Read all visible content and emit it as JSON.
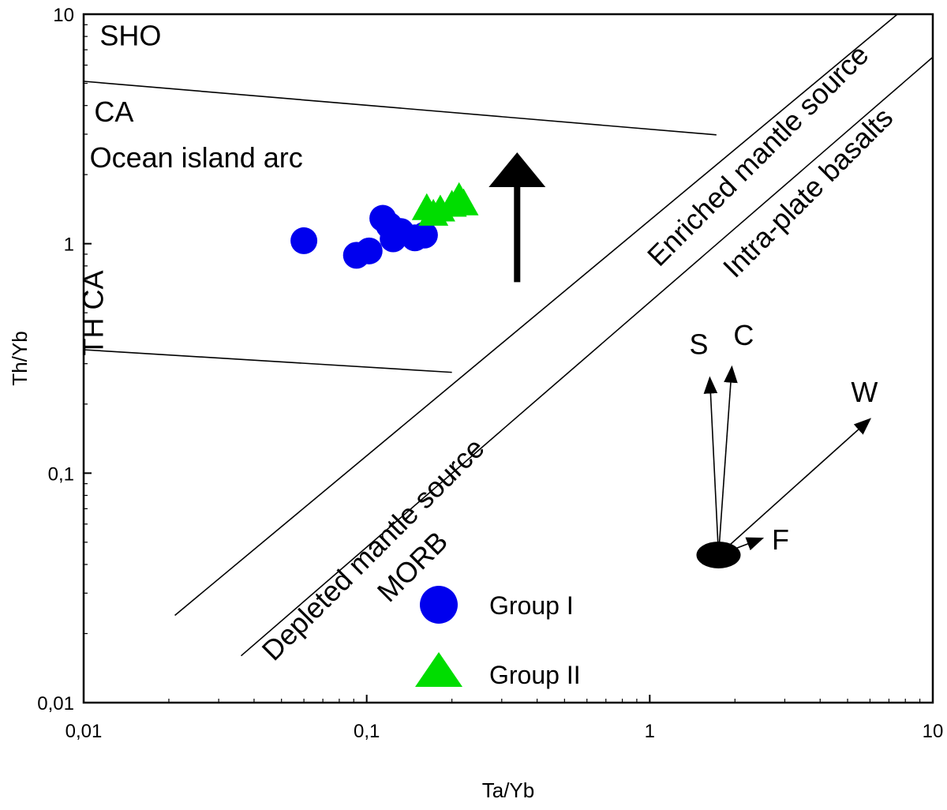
{
  "chart_data": {
    "type": "scatter",
    "xlabel": "Ta/Yb",
    "ylabel": "Th/Yb",
    "xscale": "log",
    "yscale": "log",
    "xlim": [
      0.01,
      10
    ],
    "ylim": [
      0.01,
      10
    ],
    "grid": false,
    "legend_placement": "bottom-center",
    "x_ticks": [
      {
        "value": 0.01,
        "label": "0,01"
      },
      {
        "value": 0.1,
        "label": "0,1"
      },
      {
        "value": 1,
        "label": "1"
      },
      {
        "value": 10,
        "label": "10"
      }
    ],
    "y_ticks": [
      {
        "value": 0.01,
        "label": "0,01"
      },
      {
        "value": 0.1,
        "label": "0,1"
      },
      {
        "value": 1,
        "label": "1"
      },
      {
        "value": 10,
        "label": "10"
      }
    ],
    "series": [
      {
        "name": "Group I",
        "marker": "circle",
        "color": "#0000ee",
        "points": [
          [
            0.06,
            1.03
          ],
          [
            0.092,
            0.89
          ],
          [
            0.102,
            0.93
          ],
          [
            0.114,
            1.29
          ],
          [
            0.12,
            1.2
          ],
          [
            0.124,
            1.05
          ],
          [
            0.132,
            1.13
          ],
          [
            0.148,
            1.06
          ],
          [
            0.16,
            1.09
          ]
        ]
      },
      {
        "name": "Group II",
        "marker": "triangle",
        "color": "#00dd00",
        "points": [
          [
            0.163,
            1.45
          ],
          [
            0.172,
            1.37
          ],
          [
            0.182,
            1.43
          ],
          [
            0.2,
            1.5
          ],
          [
            0.212,
            1.62
          ],
          [
            0.22,
            1.52
          ]
        ]
      }
    ],
    "boundary_lines": [
      {
        "name": "sho-ca-boundary",
        "x": [
          0.01,
          1.72
        ],
        "y": [
          5.1,
          2.98
        ]
      },
      {
        "name": "ca-th-boundary",
        "x": [
          0.01,
          0.2
        ],
        "y": [
          0.345,
          0.275
        ]
      },
      {
        "name": "mantle-array-upper",
        "x": [
          0.021,
          7.5
        ],
        "y": [
          0.024,
          10
        ]
      },
      {
        "name": "mantle-array-lower",
        "x": [
          0.036,
          10
        ],
        "y": [
          0.016,
          6.5
        ]
      }
    ],
    "region_labels": [
      {
        "text": "SHO",
        "x": 0.0114,
        "y": 7.3,
        "rotate": false
      },
      {
        "text": "CA",
        "x": 0.0109,
        "y": 3.4,
        "rotate": false
      },
      {
        "text": "Ocean island arc",
        "x": 0.0105,
        "y": 2.15,
        "rotate": false
      },
      {
        "text": "TH CA",
        "x": 0.0117,
        "y": 0.325,
        "rotate": true
      },
      {
        "text": "Enriched mantle source",
        "x": 1.08,
        "y": 0.785,
        "rotate": true
      },
      {
        "text": "Intra-plate basalts",
        "x": 2.0,
        "y": 0.7,
        "rotate": true
      },
      {
        "text": "Depleted mantle source",
        "x": 0.047,
        "y": 0.015,
        "rotate": true
      },
      {
        "text": "MORB",
        "x": 0.12,
        "y": 0.027,
        "rotate": true
      }
    ],
    "trend_arrow": {
      "x": 0.34,
      "y_from": 0.68,
      "y_to": 2.5
    },
    "vectors": {
      "origin": [
        1.75,
        0.044
      ],
      "items": [
        {
          "label": "S",
          "to": [
            1.63,
            0.26
          ]
        },
        {
          "label": "C",
          "to": [
            1.95,
            0.29
          ]
        },
        {
          "label": "W",
          "to": [
            6.0,
            0.172
          ]
        },
        {
          "label": "F",
          "to": [
            2.5,
            0.052
          ]
        }
      ]
    }
  }
}
